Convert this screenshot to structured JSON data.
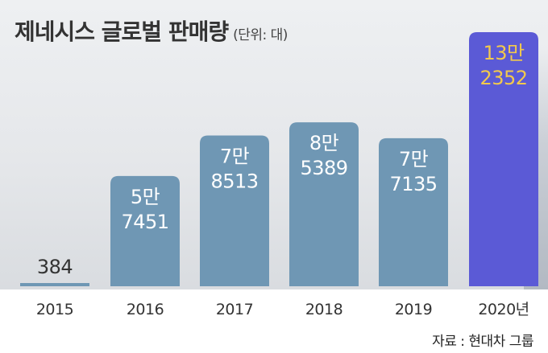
{
  "header": {
    "title": "제네시스 글로벌 판매량",
    "unit": "(단위: 대)"
  },
  "source": "자료 : 현대차 그룹",
  "colors": {
    "bar": "#6f97b4",
    "highlight_bar": "#5b5ad6",
    "highlight_label": "#f2c94c",
    "label": "#ffffff",
    "small_value_label": "#333333"
  },
  "chart_data": {
    "type": "bar",
    "title": "제네시스 글로벌 판매량",
    "unit": "(단위: 대)",
    "categories": [
      "2015",
      "2016",
      "2017",
      "2018",
      "2019",
      "2020년"
    ],
    "values": [
      384,
      57451,
      78513,
      85389,
      77135,
      132352
    ],
    "value_labels": [
      [
        "384"
      ],
      [
        "5만",
        "7451"
      ],
      [
        "7만",
        "8513"
      ],
      [
        "8만",
        "5389"
      ],
      [
        "7만",
        "7135"
      ],
      [
        "13만",
        "2352"
      ]
    ],
    "highlight_index": 5,
    "grid": false,
    "legend": "none"
  }
}
